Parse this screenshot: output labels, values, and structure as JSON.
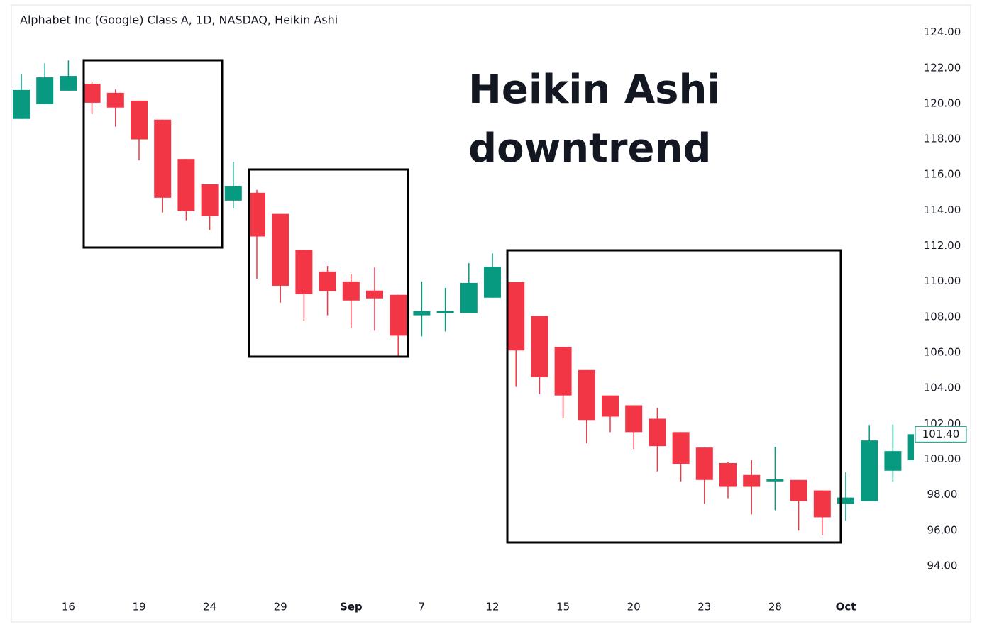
{
  "chart_data": {
    "type": "candlestick",
    "title": "Alphabet Inc (Google) Class A, 1D, NASDAQ, Heikin Ashi",
    "annotation": [
      "Heikin Ashi",
      "downtrend"
    ],
    "categories": [
      null,
      null,
      "16",
      null,
      null,
      "19",
      null,
      null,
      "24",
      null,
      null,
      "29",
      null,
      null,
      "Sep",
      null,
      null,
      "7",
      null,
      null,
      "12",
      null,
      null,
      "15",
      null,
      null,
      "20",
      null,
      null,
      "23",
      null,
      null,
      "28",
      null,
      null,
      "Oct",
      null,
      null,
      null
    ],
    "open": [
      119.13,
      119.96,
      120.72,
      121.11,
      120.6,
      120.16,
      119.09,
      116.88,
      115.45,
      114.54,
      114.98,
      113.79,
      111.77,
      110.55,
      109.99,
      109.48,
      109.24,
      108.09,
      108.21,
      108.21,
      109.08,
      109.95,
      108.05,
      106.31,
      105.01,
      103.58,
      103.03,
      102.27,
      101.52,
      100.65,
      99.78,
      99.11,
      98.75,
      98.83,
      98.24,
      97.49,
      97.64,
      99.35,
      99.94
    ],
    "high": [
      121.67,
      122.26,
      122.42,
      121.23,
      120.79,
      120.16,
      119.09,
      116.88,
      115.45,
      116.72,
      115.14,
      113.79,
      111.77,
      110.86,
      110.39,
      110.78,
      109.24,
      109.99,
      109.63,
      111.02,
      111.57,
      109.95,
      108.05,
      106.31,
      105.01,
      103.58,
      103.03,
      102.87,
      101.52,
      100.65,
      99.86,
      99.94,
      100.69,
      98.83,
      98.24,
      99.27,
      101.92,
      101.96,
      102.0
    ],
    "low": [
      119.13,
      119.96,
      120.72,
      119.41,
      118.7,
      116.8,
      113.87,
      113.43,
      112.88,
      114.11,
      110.15,
      108.8,
      107.78,
      108.09,
      107.38,
      107.22,
      105.8,
      106.9,
      107.18,
      108.21,
      109.08,
      104.06,
      103.66,
      102.31,
      100.89,
      101.52,
      100.57,
      99.31,
      98.75,
      97.49,
      97.8,
      96.89,
      97.13,
      95.98,
      95.71,
      96.54,
      97.64,
      98.75,
      99.94
    ],
    "close": [
      120.76,
      121.47,
      121.55,
      120.04,
      119.77,
      117.98,
      114.7,
      113.95,
      113.67,
      115.37,
      112.52,
      109.75,
      109.28,
      109.44,
      108.92,
      109.04,
      106.94,
      108.33,
      108.33,
      109.91,
      110.82,
      106.11,
      104.61,
      103.58,
      102.2,
      102.39,
      101.52,
      100.73,
      99.74,
      98.83,
      98.44,
      98.44,
      98.87,
      97.64,
      96.73,
      97.84,
      101.05,
      100.45,
      101.4
    ],
    "up_color": "#089981",
    "down_color": "#f23645",
    "last_price": 101.4,
    "last_price_label": "101.40",
    "ylim": [
      92.8,
      125.5
    ],
    "yticks": [
      {
        "value": 94,
        "label": "94.00"
      },
      {
        "value": 96,
        "label": "96.00"
      },
      {
        "value": 98,
        "label": "98.00"
      },
      {
        "value": 100,
        "label": "100.00"
      },
      {
        "value": 102,
        "label": "102.00"
      },
      {
        "value": 104,
        "label": "104.00"
      },
      {
        "value": 106,
        "label": "106.00"
      },
      {
        "value": 108,
        "label": "108.00"
      },
      {
        "value": 110,
        "label": "110.00"
      },
      {
        "value": 112,
        "label": "112.00"
      },
      {
        "value": 114,
        "label": "114.00"
      },
      {
        "value": 116,
        "label": "116.00"
      },
      {
        "value": 118,
        "label": "118.00"
      },
      {
        "value": 120,
        "label": "120.00"
      },
      {
        "value": 122,
        "label": "122.00"
      },
      {
        "value": 124,
        "label": "124.00"
      }
    ]
  }
}
